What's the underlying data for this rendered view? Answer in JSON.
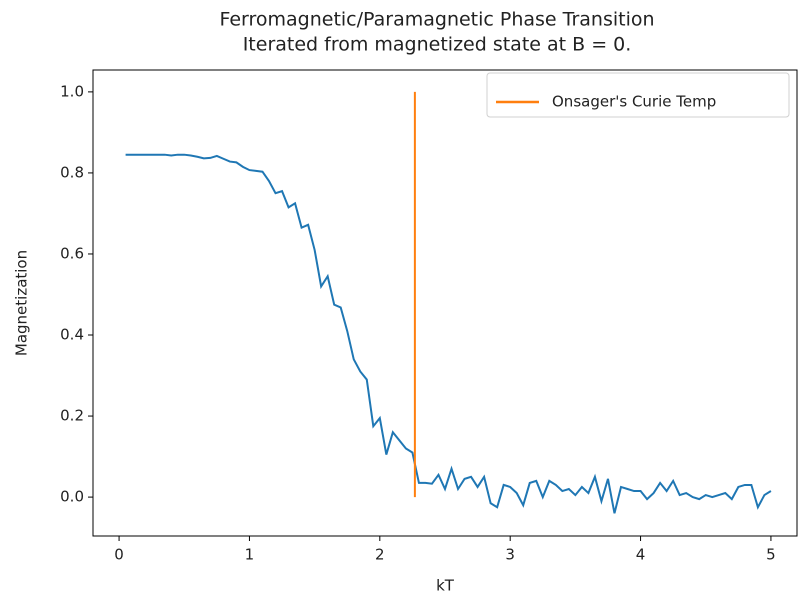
{
  "chart_data": {
    "type": "line",
    "title": "Ferromagnetic/Paramagnetic Phase Transition",
    "subtitle": "Iterated from magnetized state at B = 0.",
    "xlabel": "kT",
    "ylabel": "Magnetization",
    "xlim": [
      -0.2,
      5.2
    ],
    "ylim": [
      -0.096,
      1.054
    ],
    "xticks": [
      0,
      1,
      2,
      3,
      4,
      5
    ],
    "yticks": [
      {
        "value": 0,
        "label": "0.0"
      },
      0.2,
      0.4,
      0.6,
      0.8,
      {
        "value": 1,
        "label": "1.0"
      }
    ],
    "legend": "upper right",
    "series": [
      {
        "color": "#1f77b4",
        "x": [
          0.05,
          0.1,
          0.15,
          0.2,
          0.25,
          0.3,
          0.35,
          0.4,
          0.45,
          0.5,
          0.55,
          0.6,
          0.65,
          0.7,
          0.75,
          0.8,
          0.85,
          0.9,
          0.95,
          1.0,
          1.05,
          1.1,
          1.15,
          1.2,
          1.25,
          1.3,
          1.35,
          1.4,
          1.45,
          1.5,
          1.55,
          1.6,
          1.65,
          1.7,
          1.75,
          1.8,
          1.85,
          1.9,
          1.95,
          2.0,
          2.05,
          2.1,
          2.15,
          2.2,
          2.25,
          2.3,
          2.35,
          2.4,
          2.45,
          2.5,
          2.55,
          2.6,
          2.65,
          2.7,
          2.75,
          2.8,
          2.85,
          2.9,
          2.95,
          3.0,
          3.05,
          3.1,
          3.15,
          3.2,
          3.25,
          3.3,
          3.35,
          3.4,
          3.45,
          3.5,
          3.55,
          3.6,
          3.65,
          3.7,
          3.75,
          3.8,
          3.85,
          3.9,
          3.95,
          4.0,
          4.05,
          4.1,
          4.15,
          4.2,
          4.25,
          4.3,
          4.35,
          4.4,
          4.45,
          4.5,
          4.55,
          4.6,
          4.65,
          4.7,
          4.75,
          4.8,
          4.85,
          4.9,
          4.95,
          5.0
        ],
        "values": [
          0.845,
          0.845,
          0.845,
          0.845,
          0.845,
          0.845,
          0.845,
          0.843,
          0.845,
          0.845,
          0.843,
          0.84,
          0.836,
          0.837,
          0.842,
          0.835,
          0.828,
          0.826,
          0.815,
          0.807,
          0.805,
          0.803,
          0.78,
          0.75,
          0.755,
          0.715,
          0.725,
          0.665,
          0.672,
          0.61,
          0.52,
          0.545,
          0.475,
          0.468,
          0.41,
          0.34,
          0.31,
          0.29,
          0.175,
          0.195,
          0.105,
          0.16,
          0.14,
          0.12,
          0.11,
          0.035,
          0.035,
          0.033,
          0.055,
          0.02,
          0.07,
          0.02,
          0.045,
          0.05,
          0.025,
          0.05,
          -0.015,
          -0.025,
          0.03,
          0.025,
          0.01,
          -0.02,
          0.035,
          0.04,
          0.0,
          0.04,
          0.03,
          0.015,
          0.02,
          0.005,
          0.025,
          0.01,
          0.05,
          -0.01,
          0.045,
          -0.04,
          0.025,
          0.02,
          0.015,
          0.015,
          -0.005,
          0.01,
          0.035,
          0.015,
          0.04,
          0.005,
          0.01,
          0.0,
          -0.005,
          0.005,
          0.0,
          0.005,
          0.01,
          -0.005,
          0.025,
          0.03,
          0.03,
          -0.025,
          0.005,
          0.015
        ]
      },
      {
        "name": "Onsager's Curie Temp",
        "color": "#ff7f0e",
        "x": [
          2.269,
          2.269
        ],
        "values": [
          0,
          1
        ]
      }
    ]
  }
}
